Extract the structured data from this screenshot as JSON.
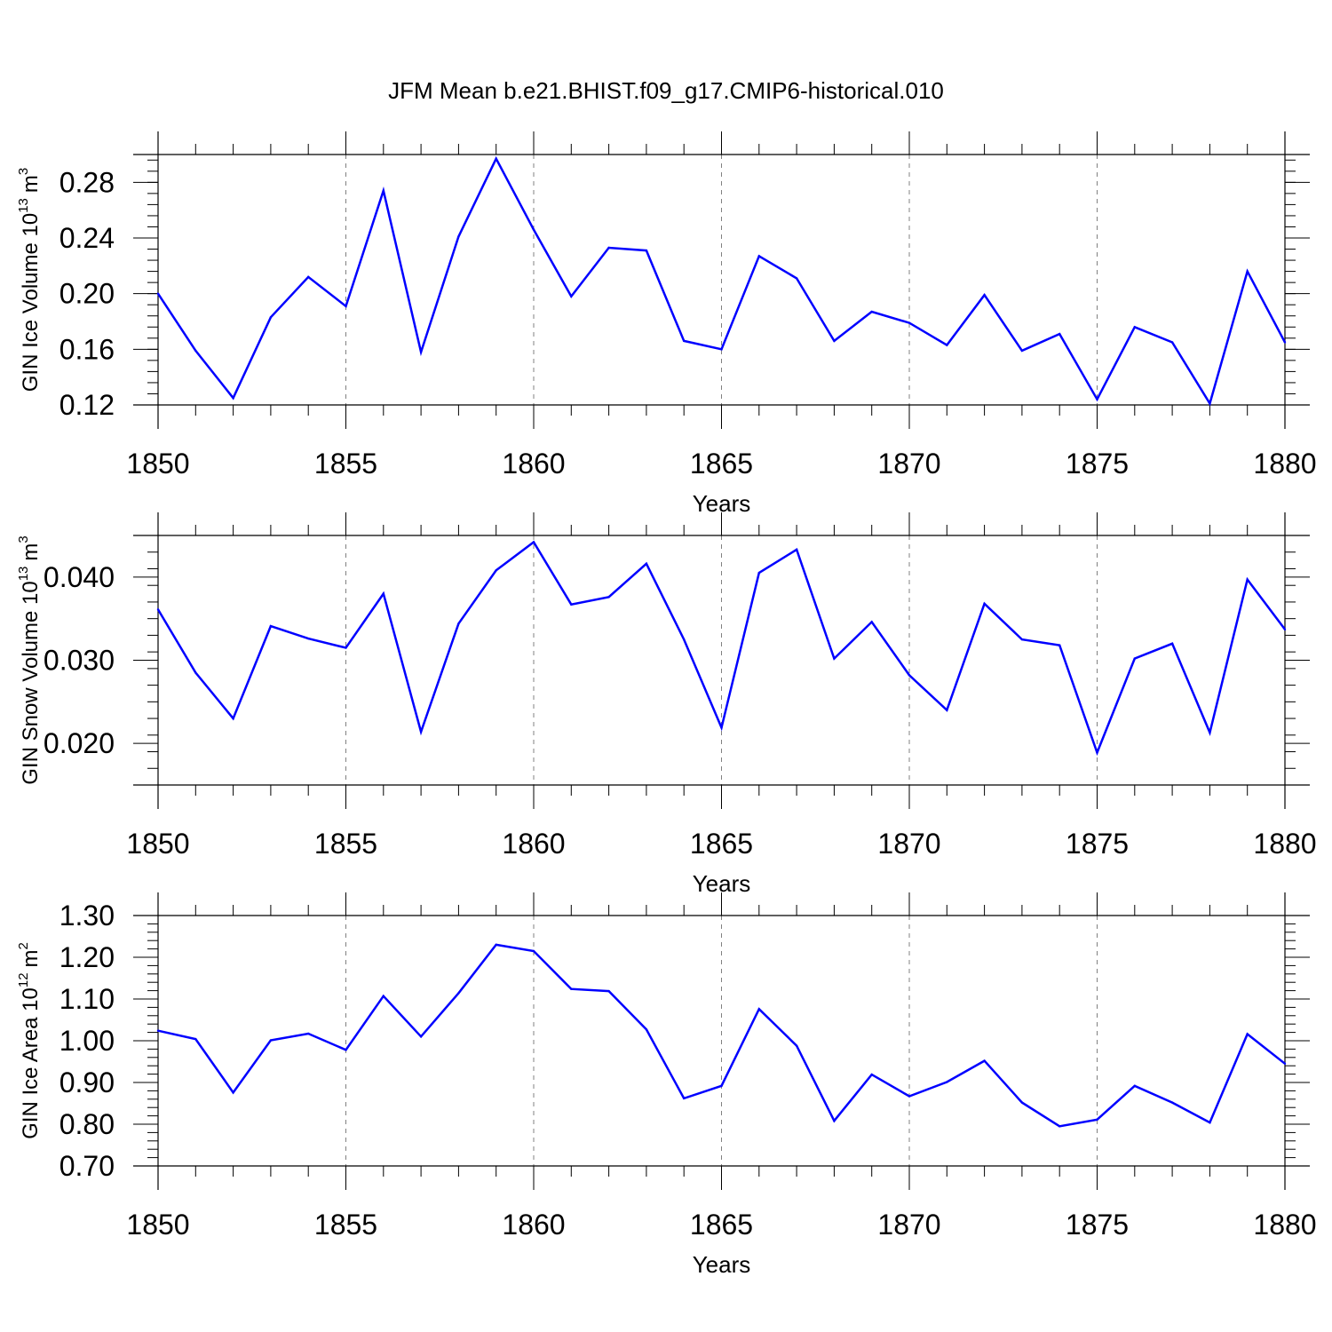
{
  "title": "JFM Mean b.e21.BHIST.f09_g17.CMIP6-historical.010",
  "colors": {
    "line": "#0000ff",
    "axis": "#000000",
    "grid": "#808080"
  },
  "chart_data": [
    {
      "type": "line",
      "ylabel_text": "GIN Ice Volume 10",
      "ylabel_exp": "13",
      "ylabel_unit": "m",
      "ylabel_unit_exp": "3",
      "xlabel": "Years",
      "xlim": [
        1850,
        1880
      ],
      "ylim": [
        0.12,
        0.3
      ],
      "xticks": [
        1850,
        1855,
        1860,
        1865,
        1870,
        1875,
        1880
      ],
      "yticks": [
        "0.12",
        "0.16",
        "0.20",
        "0.24",
        "0.28"
      ],
      "grid": "vertical dashed at major x ticks",
      "x": [
        1850,
        1851,
        1852,
        1853,
        1854,
        1855,
        1856,
        1857,
        1858,
        1859,
        1860,
        1861,
        1862,
        1863,
        1864,
        1865,
        1866,
        1867,
        1868,
        1869,
        1870,
        1871,
        1872,
        1873,
        1874,
        1875,
        1876,
        1877,
        1878,
        1879,
        1880
      ],
      "values": [
        0.2,
        0.159,
        0.125,
        0.183,
        0.212,
        0.191,
        0.274,
        0.158,
        0.241,
        0.297,
        0.246,
        0.198,
        0.233,
        0.231,
        0.166,
        0.16,
        0.227,
        0.211,
        0.166,
        0.187,
        0.179,
        0.163,
        0.199,
        0.159,
        0.171,
        0.124,
        0.176,
        0.165,
        0.121,
        0.216,
        0.165
      ]
    },
    {
      "type": "line",
      "ylabel_text": "GIN Snow Volume 10",
      "ylabel_exp": "13",
      "ylabel_unit": "m",
      "ylabel_unit_exp": "3",
      "xlabel": "Years",
      "xlim": [
        1850,
        1880
      ],
      "ylim": [
        0.015,
        0.045
      ],
      "xticks": [
        1850,
        1855,
        1860,
        1865,
        1870,
        1875,
        1880
      ],
      "yticks": [
        "0.020",
        "0.030",
        "0.040"
      ],
      "grid": "vertical dashed at major x ticks",
      "x": [
        1850,
        1851,
        1852,
        1853,
        1854,
        1855,
        1856,
        1857,
        1858,
        1859,
        1860,
        1861,
        1862,
        1863,
        1864,
        1865,
        1866,
        1867,
        1868,
        1869,
        1870,
        1871,
        1872,
        1873,
        1874,
        1875,
        1876,
        1877,
        1878,
        1879,
        1880
      ],
      "values": [
        0.0361,
        0.0285,
        0.023,
        0.0341,
        0.0326,
        0.0315,
        0.038,
        0.0214,
        0.0344,
        0.0408,
        0.0442,
        0.0367,
        0.0376,
        0.0416,
        0.0325,
        0.0219,
        0.0405,
        0.0433,
        0.0302,
        0.0346,
        0.0282,
        0.024,
        0.0368,
        0.0325,
        0.0318,
        0.0189,
        0.0302,
        0.032,
        0.0213,
        0.0397,
        0.0337
      ]
    },
    {
      "type": "line",
      "ylabel_text": "GIN Ice Area 10",
      "ylabel_exp": "12",
      "ylabel_unit": "m",
      "ylabel_unit_exp": "2",
      "xlabel": "Years",
      "xlim": [
        1850,
        1880
      ],
      "ylim": [
        0.7,
        1.3
      ],
      "xticks": [
        1850,
        1855,
        1860,
        1865,
        1870,
        1875,
        1880
      ],
      "yticks": [
        "0.70",
        "0.80",
        "0.90",
        "1.00",
        "1.10",
        "1.20",
        "1.30"
      ],
      "grid": "vertical dashed at major x ticks",
      "x": [
        1850,
        1851,
        1852,
        1853,
        1854,
        1855,
        1856,
        1857,
        1858,
        1859,
        1860,
        1861,
        1862,
        1863,
        1864,
        1865,
        1866,
        1867,
        1868,
        1869,
        1870,
        1871,
        1872,
        1873,
        1874,
        1875,
        1876,
        1877,
        1878,
        1879,
        1880
      ],
      "values": [
        1.024,
        1.004,
        0.876,
        1.001,
        1.017,
        0.978,
        1.107,
        1.01,
        1.114,
        1.23,
        1.215,
        1.124,
        1.119,
        1.027,
        0.862,
        0.892,
        1.076,
        0.988,
        0.808,
        0.919,
        0.867,
        0.901,
        0.952,
        0.852,
        0.795,
        0.811,
        0.892,
        0.852,
        0.804,
        1.016,
        0.945
      ]
    }
  ]
}
